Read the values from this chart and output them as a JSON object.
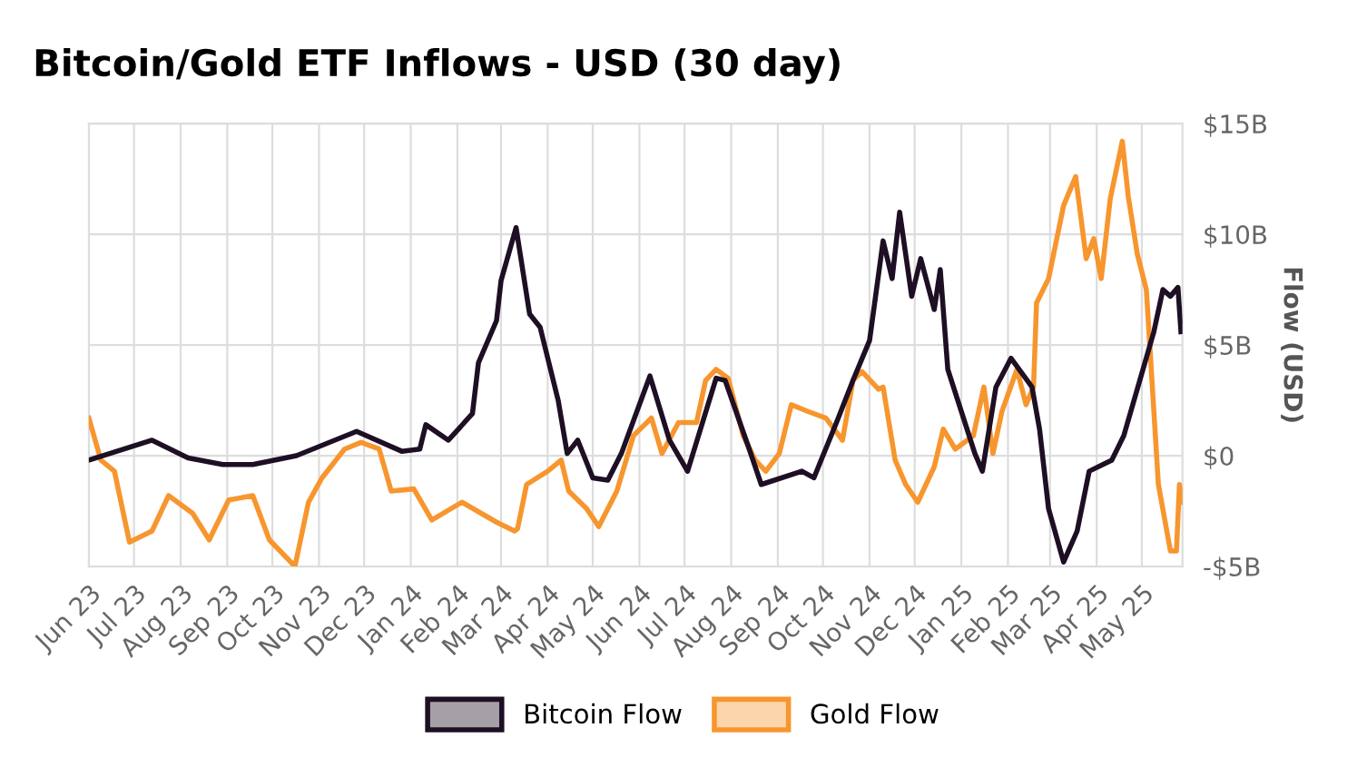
{
  "chart_data": {
    "type": "line",
    "title": "Bitcoin/Gold ETF Inflows - USD (30 day)",
    "ylabel": "Flow (USD)",
    "xlim": [
      "2023-06-01",
      "2025-05-28"
    ],
    "ylim": [
      -5,
      15
    ],
    "yticks": [
      {
        "value": -5,
        "label": "-$5B"
      },
      {
        "value": 0,
        "label": "$0"
      },
      {
        "value": 5,
        "label": "$5B"
      },
      {
        "value": 10,
        "label": "$10B"
      },
      {
        "value": 15,
        "label": "$15B"
      }
    ],
    "xticks": [
      {
        "value": "2023-06-01",
        "label": "Jun 23"
      },
      {
        "value": "2023-07-01",
        "label": "Jul 23"
      },
      {
        "value": "2023-08-01",
        "label": "Aug 23"
      },
      {
        "value": "2023-09-01",
        "label": "Sep 23"
      },
      {
        "value": "2023-10-01",
        "label": "Oct 23"
      },
      {
        "value": "2023-11-01",
        "label": "Nov 23"
      },
      {
        "value": "2023-12-01",
        "label": "Dec 23"
      },
      {
        "value": "2024-01-01",
        "label": "Jan 24"
      },
      {
        "value": "2024-02-01",
        "label": "Feb 24"
      },
      {
        "value": "2024-03-01",
        "label": "Mar 24"
      },
      {
        "value": "2024-04-01",
        "label": "Apr 24"
      },
      {
        "value": "2024-05-01",
        "label": "May 24"
      },
      {
        "value": "2024-06-01",
        "label": "Jun 24"
      },
      {
        "value": "2024-07-01",
        "label": "Jul 24"
      },
      {
        "value": "2024-08-01",
        "label": "Aug 24"
      },
      {
        "value": "2024-09-01",
        "label": "Sep 24"
      },
      {
        "value": "2024-10-01",
        "label": "Oct 24"
      },
      {
        "value": "2024-11-01",
        "label": "Nov 24"
      },
      {
        "value": "2024-12-01",
        "label": "Dec 24"
      },
      {
        "value": "2025-01-01",
        "label": "Jan 25"
      },
      {
        "value": "2025-02-01",
        "label": "Feb 25"
      },
      {
        "value": "2025-03-01",
        "label": "Mar 25"
      },
      {
        "value": "2025-04-01",
        "label": "Apr 25"
      },
      {
        "value": "2025-05-01",
        "label": "May 25"
      }
    ],
    "grid": true,
    "legend": "bottom",
    "marker": "none",
    "line_style": "solid",
    "series": [
      {
        "name": "Bitcoin Flow",
        "color": "#1e0f24",
        "x": [
          "2023-06-01",
          "2023-07-13",
          "2023-08-06",
          "2023-08-29",
          "2023-09-18",
          "2023-10-17",
          "2023-11-26",
          "2023-12-26",
          "2024-01-07",
          "2024-01-11",
          "2024-01-26",
          "2024-02-11",
          "2024-02-15",
          "2024-02-27",
          "2024-03-01",
          "2024-03-11",
          "2024-03-20",
          "2024-03-27",
          "2024-04-08",
          "2024-04-14",
          "2024-04-21",
          "2024-05-01",
          "2024-05-11",
          "2024-05-20",
          "2024-06-08",
          "2024-06-21",
          "2024-07-03",
          "2024-07-22",
          "2024-07-28",
          "2024-08-13",
          "2024-08-21",
          "2024-09-17",
          "2024-09-25",
          "2024-10-10",
          "2024-10-21",
          "2024-11-01",
          "2024-11-10",
          "2024-11-16",
          "2024-11-21",
          "2024-11-29",
          "2024-12-05",
          "2024-12-14",
          "2024-12-18",
          "2024-12-23",
          "2025-01-10",
          "2025-01-15",
          "2025-01-24",
          "2025-02-03",
          "2025-02-17",
          "2025-02-22",
          "2025-02-28",
          "2025-03-10",
          "2025-03-19",
          "2025-03-27",
          "2025-04-11",
          "2025-04-19",
          "2025-05-09",
          "2025-05-15",
          "2025-05-20",
          "2025-05-25",
          "2025-05-27"
        ],
        "values": [
          -0.2,
          0.7,
          -0.1,
          -0.4,
          -0.4,
          0,
          1.1,
          0.2,
          0.3,
          1.4,
          0.7,
          1.9,
          4.2,
          6.1,
          7.9,
          10.3,
          6.4,
          5.8,
          2.5,
          0.1,
          0.7,
          -1.0,
          -1.1,
          0.1,
          3.6,
          0.7,
          -0.7,
          3.5,
          3.4,
          0.3,
          -1.3,
          -0.7,
          -1.0,
          1.5,
          3.4,
          5.2,
          9.7,
          8.0,
          11.0,
          7.2,
          8.9,
          6.6,
          8.4,
          3.9,
          0.1,
          -0.7,
          3.1,
          4.4,
          3.1,
          1.2,
          -2.4,
          -4.8,
          -3.4,
          -0.7,
          -0.2,
          0.9,
          5.6,
          7.5,
          7.2,
          7.6,
          5.6
        ]
      },
      {
        "name": "Gold Flow",
        "color": "#f7962e",
        "x": [
          "2023-06-01",
          "2023-06-09",
          "2023-06-18",
          "2023-06-28",
          "2023-07-13",
          "2023-07-24",
          "2023-08-09",
          "2023-08-20",
          "2023-09-02",
          "2023-09-18",
          "2023-09-29",
          "2023-10-16",
          "2023-10-25",
          "2023-11-03",
          "2023-11-18",
          "2023-11-29",
          "2023-12-11",
          "2023-12-19",
          "2024-01-03",
          "2024-01-15",
          "2024-02-04",
          "2024-02-27",
          "2024-03-10",
          "2024-03-12",
          "2024-03-18",
          "2024-04-01",
          "2024-04-10",
          "2024-04-15",
          "2024-04-27",
          "2024-05-05",
          "2024-05-17",
          "2024-05-28",
          "2024-06-09",
          "2024-06-16",
          "2024-06-27",
          "2024-07-09",
          "2024-07-15",
          "2024-07-22",
          "2024-07-30",
          "2024-08-09",
          "2024-08-17",
          "2024-08-24",
          "2024-09-02",
          "2024-09-10",
          "2024-09-21",
          "2024-10-03",
          "2024-10-14",
          "2024-10-21",
          "2024-10-27",
          "2024-11-07",
          "2024-11-10",
          "2024-11-18",
          "2024-11-25",
          "2024-12-03",
          "2024-12-14",
          "2024-12-20",
          "2024-12-28",
          "2025-01-09",
          "2025-01-16",
          "2025-01-22",
          "2025-01-28",
          "2025-02-07",
          "2025-02-13",
          "2025-02-18",
          "2025-02-20",
          "2025-02-28",
          "2025-03-10",
          "2025-03-18",
          "2025-03-25",
          "2025-03-30",
          "2025-04-04",
          "2025-04-10",
          "2025-04-18",
          "2025-04-22",
          "2025-04-28",
          "2025-05-04",
          "2025-05-12",
          "2025-05-20",
          "2025-05-24",
          "2025-05-26",
          "2025-05-28"
        ],
        "values": [
          1.7,
          -0.2,
          -0.7,
          -3.9,
          -3.4,
          -1.8,
          -2.6,
          -3.8,
          -2.0,
          -1.8,
          -3.8,
          -5.0,
          -2.1,
          -1.0,
          0.3,
          0.6,
          0.3,
          -1.6,
          -1.5,
          -2.9,
          -2.1,
          -3.0,
          -3.4,
          -3.3,
          -1.3,
          -0.7,
          -0.2,
          -1.6,
          -2.4,
          -3.2,
          -1.6,
          0.9,
          1.7,
          0.1,
          1.5,
          1.5,
          3.4,
          3.9,
          3.5,
          0.9,
          -0.2,
          -0.7,
          0.1,
          2.3,
          2.0,
          1.7,
          0.7,
          3.4,
          3.8,
          3.0,
          3.1,
          -0.2,
          -1.3,
          -2.1,
          -0.5,
          1.2,
          0.3,
          0.9,
          3.1,
          0.1,
          2.0,
          3.9,
          2.3,
          3.1,
          6.9,
          8.0,
          11.3,
          12.6,
          8.9,
          9.8,
          8.0,
          11.6,
          14.2,
          11.7,
          9.1,
          7.5,
          -1.3,
          -4.3,
          -4.3,
          -1.3,
          -2.1
        ]
      }
    ]
  }
}
